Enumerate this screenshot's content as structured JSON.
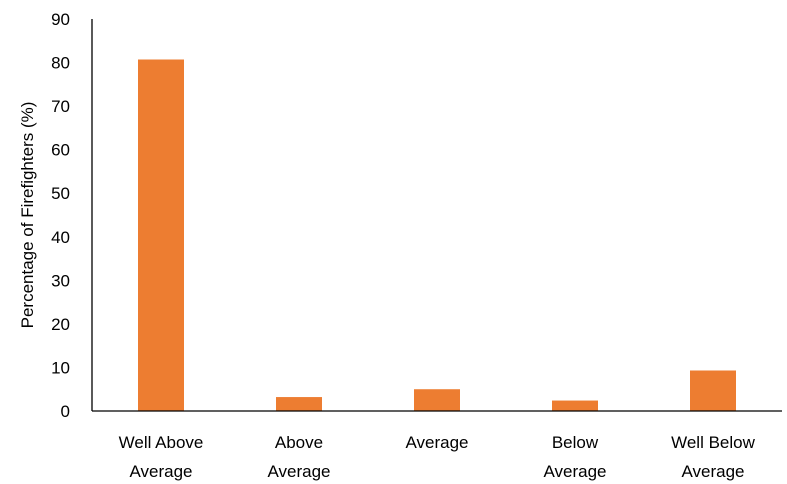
{
  "chart_data": {
    "type": "bar",
    "categories": [
      [
        "Well Above",
        "Average"
      ],
      [
        "Above",
        "Average"
      ],
      [
        "Average"
      ],
      [
        "Below",
        "Average"
      ],
      [
        "Well Below",
        "Average"
      ]
    ],
    "values": [
      80.7,
      3.2,
      5.0,
      2.4,
      9.3
    ],
    "ylabel": "Percentage of Firefighters (%)",
    "xlabel": "",
    "title": "",
    "ylim": [
      0,
      90
    ],
    "yticks": [
      0,
      10,
      20,
      30,
      40,
      50,
      60,
      70,
      80,
      90
    ],
    "grid": false,
    "legend": "none",
    "bar_color": "#ED7D31"
  }
}
